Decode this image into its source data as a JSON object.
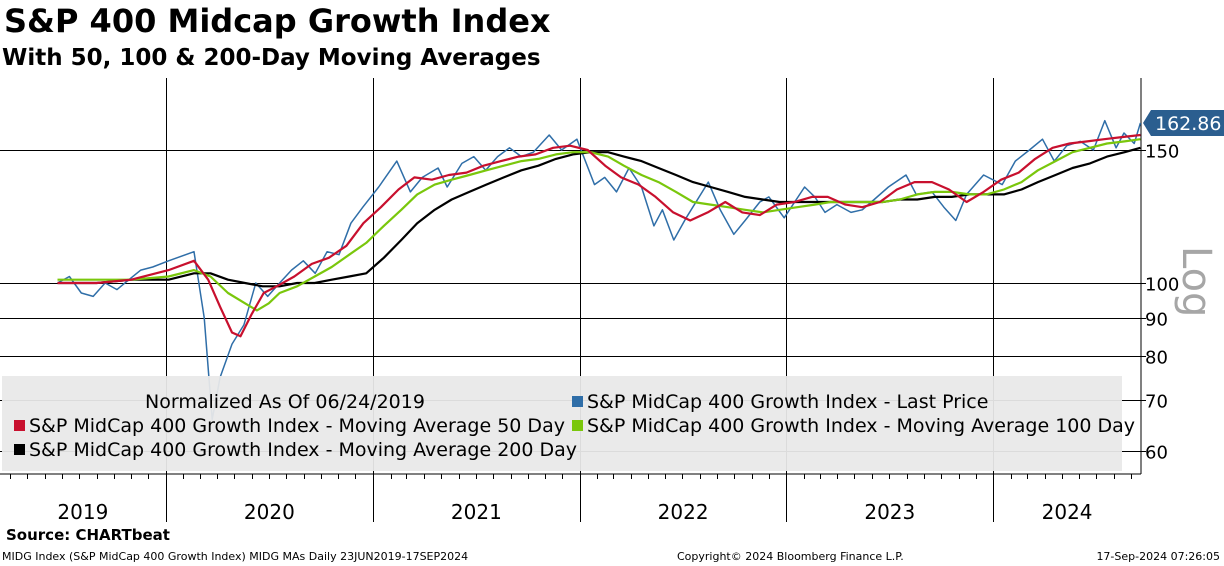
{
  "header": {
    "title": "S&P 400 Midcap Growth Index",
    "subtitle": "With 50, 100 & 200-Day Moving Averages"
  },
  "footer": {
    "source": "Source: CHARTbeat",
    "description": "MIDG Index (S&P MidCap 400 Growth Index) MIDG MAs  Daily 23JUN2019-17SEP2024",
    "copyright": "Copyright© 2024 Bloomberg Finance L.P.",
    "timestamp": "17-Sep-2024 07:26:05"
  },
  "chart_data": {
    "type": "line",
    "scale": "log",
    "scale_label": "Log",
    "ylim": [
      55,
      175
    ],
    "yticks": [
      60,
      70,
      80,
      90,
      100,
      150
    ],
    "xlim": [
      "2019-01-01",
      "2024-09-17"
    ],
    "year_labels": [
      "2019",
      "2020",
      "2021",
      "2022",
      "2023",
      "2024"
    ],
    "year_boundaries": [
      "2020-01-01",
      "2021-01-01",
      "2022-01-01",
      "2023-01-01",
      "2024-01-01"
    ],
    "last_value": 162.86,
    "last_value_label": "162.86",
    "legend_note": "Normalized As Of 06/24/2019",
    "legend_position": "bottom",
    "grid": true,
    "series": [
      {
        "name": "S&P MidCap 400 Growth Index - Last Price",
        "color": "#2f6ea8",
        "points": [
          [
            "2019-06-24",
            100
          ],
          [
            "2019-07-15",
            102
          ],
          [
            "2019-08-05",
            97
          ],
          [
            "2019-08-26",
            96
          ],
          [
            "2019-09-16",
            100
          ],
          [
            "2019-10-07",
            98
          ],
          [
            "2019-10-28",
            101
          ],
          [
            "2019-11-18",
            104
          ],
          [
            "2019-12-09",
            105
          ],
          [
            "2020-01-06",
            107
          ],
          [
            "2020-02-20",
            110
          ],
          [
            "2020-03-09",
            90
          ],
          [
            "2020-03-23",
            66
          ],
          [
            "2020-04-06",
            75
          ],
          [
            "2020-04-27",
            83
          ],
          [
            "2020-05-18",
            88
          ],
          [
            "2020-06-08",
            100
          ],
          [
            "2020-06-29",
            96
          ],
          [
            "2020-07-20",
            100
          ],
          [
            "2020-08-10",
            104
          ],
          [
            "2020-08-31",
            107
          ],
          [
            "2020-09-21",
            103
          ],
          [
            "2020-10-12",
            110
          ],
          [
            "2020-11-02",
            109
          ],
          [
            "2020-11-23",
            120
          ],
          [
            "2020-12-14",
            126
          ],
          [
            "2021-01-11",
            134
          ],
          [
            "2021-02-12",
            145
          ],
          [
            "2021-03-08",
            132
          ],
          [
            "2021-03-29",
            138
          ],
          [
            "2021-04-26",
            142
          ],
          [
            "2021-05-12",
            134
          ],
          [
            "2021-06-07",
            144
          ],
          [
            "2021-06-28",
            147
          ],
          [
            "2021-07-19",
            141
          ],
          [
            "2021-08-09",
            147
          ],
          [
            "2021-08-30",
            151
          ],
          [
            "2021-09-20",
            147
          ],
          [
            "2021-10-11",
            149
          ],
          [
            "2021-11-08",
            157
          ],
          [
            "2021-11-30",
            150
          ],
          [
            "2021-12-27",
            155
          ],
          [
            "2022-01-27",
            135
          ],
          [
            "2022-02-14",
            138
          ],
          [
            "2022-03-07",
            132
          ],
          [
            "2022-03-29",
            142
          ],
          [
            "2022-04-20",
            134
          ],
          [
            "2022-05-12",
            119
          ],
          [
            "2022-05-27",
            125
          ],
          [
            "2022-06-16",
            114
          ],
          [
            "2022-07-08",
            122
          ],
          [
            "2022-08-16",
            136
          ],
          [
            "2022-09-06",
            125
          ],
          [
            "2022-09-30",
            116
          ],
          [
            "2022-10-20",
            121
          ],
          [
            "2022-11-15",
            128
          ],
          [
            "2022-12-01",
            130
          ],
          [
            "2022-12-28",
            122
          ],
          [
            "2023-02-02",
            134
          ],
          [
            "2023-02-20",
            130
          ],
          [
            "2023-03-10",
            124
          ],
          [
            "2023-03-31",
            127
          ],
          [
            "2023-04-25",
            124
          ],
          [
            "2023-05-15",
            125
          ],
          [
            "2023-06-05",
            129
          ],
          [
            "2023-06-30",
            134
          ],
          [
            "2023-07-31",
            139
          ],
          [
            "2023-08-18",
            131
          ],
          [
            "2023-09-15",
            132
          ],
          [
            "2023-10-06",
            126
          ],
          [
            "2023-10-27",
            121
          ],
          [
            "2023-11-15",
            131
          ],
          [
            "2023-12-15",
            139
          ],
          [
            "2024-01-17",
            135
          ],
          [
            "2024-02-09",
            145
          ],
          [
            "2024-03-05",
            150
          ],
          [
            "2024-03-28",
            155
          ],
          [
            "2024-04-18",
            145
          ],
          [
            "2024-05-10",
            152
          ],
          [
            "2024-06-03",
            154
          ],
          [
            "2024-06-26",
            150
          ],
          [
            "2024-07-16",
            164
          ],
          [
            "2024-08-05",
            151
          ],
          [
            "2024-08-19",
            158
          ],
          [
            "2024-09-06",
            153
          ],
          [
            "2024-09-17",
            162.86
          ]
        ]
      },
      {
        "name": "S&P MidCap 400 Growth Index - Moving Average 50 Day",
        "color": "#c8102e",
        "points": [
          [
            "2019-06-24",
            100
          ],
          [
            "2019-09-01",
            100
          ],
          [
            "2019-11-01",
            101
          ],
          [
            "2020-01-06",
            104
          ],
          [
            "2020-02-20",
            107
          ],
          [
            "2020-03-16",
            101
          ],
          [
            "2020-04-06",
            93
          ],
          [
            "2020-04-27",
            86
          ],
          [
            "2020-05-12",
            85
          ],
          [
            "2020-06-01",
            91
          ],
          [
            "2020-06-22",
            97
          ],
          [
            "2020-07-15",
            99
          ],
          [
            "2020-08-15",
            102
          ],
          [
            "2020-09-15",
            106
          ],
          [
            "2020-10-15",
            108
          ],
          [
            "2020-11-15",
            112
          ],
          [
            "2020-12-15",
            120
          ],
          [
            "2021-01-15",
            126
          ],
          [
            "2021-02-15",
            133
          ],
          [
            "2021-03-15",
            138
          ],
          [
            "2021-04-15",
            137
          ],
          [
            "2021-05-15",
            139
          ],
          [
            "2021-06-15",
            140
          ],
          [
            "2021-07-15",
            143
          ],
          [
            "2021-08-15",
            145
          ],
          [
            "2021-09-15",
            147
          ],
          [
            "2021-10-15",
            148
          ],
          [
            "2021-11-15",
            151
          ],
          [
            "2021-12-15",
            152
          ],
          [
            "2022-01-15",
            150
          ],
          [
            "2022-02-15",
            143
          ],
          [
            "2022-03-15",
            138
          ],
          [
            "2022-04-15",
            135
          ],
          [
            "2022-05-15",
            130
          ],
          [
            "2022-06-15",
            124
          ],
          [
            "2022-07-15",
            121
          ],
          [
            "2022-08-15",
            124
          ],
          [
            "2022-09-15",
            128
          ],
          [
            "2022-10-15",
            124
          ],
          [
            "2022-11-15",
            123
          ],
          [
            "2022-12-15",
            127
          ],
          [
            "2023-01-15",
            128
          ],
          [
            "2023-02-15",
            130
          ],
          [
            "2023-03-15",
            130
          ],
          [
            "2023-04-15",
            127
          ],
          [
            "2023-05-15",
            126
          ],
          [
            "2023-06-15",
            128
          ],
          [
            "2023-07-15",
            133
          ],
          [
            "2023-08-15",
            136
          ],
          [
            "2023-09-15",
            136
          ],
          [
            "2023-10-15",
            133
          ],
          [
            "2023-11-15",
            128
          ],
          [
            "2023-12-15",
            132
          ],
          [
            "2024-01-15",
            137
          ],
          [
            "2024-02-15",
            140
          ],
          [
            "2024-03-15",
            146
          ],
          [
            "2024-04-15",
            151
          ],
          [
            "2024-05-15",
            153
          ],
          [
            "2024-06-15",
            154
          ],
          [
            "2024-07-15",
            155
          ],
          [
            "2024-08-15",
            156
          ],
          [
            "2024-09-17",
            157
          ]
        ]
      },
      {
        "name": "S&P MidCap 400 Growth Index - Moving Average 100 Day",
        "color": "#7ac70c",
        "points": [
          [
            "2019-06-24",
            101
          ],
          [
            "2019-09-01",
            101
          ],
          [
            "2019-11-01",
            101
          ],
          [
            "2020-01-06",
            102
          ],
          [
            "2020-02-20",
            104
          ],
          [
            "2020-03-20",
            102
          ],
          [
            "2020-04-20",
            97
          ],
          [
            "2020-05-20",
            94
          ],
          [
            "2020-06-10",
            92
          ],
          [
            "2020-07-01",
            94
          ],
          [
            "2020-07-20",
            97
          ],
          [
            "2020-08-20",
            99
          ],
          [
            "2020-09-20",
            102
          ],
          [
            "2020-10-20",
            105
          ],
          [
            "2020-11-20",
            109
          ],
          [
            "2020-12-20",
            113
          ],
          [
            "2021-01-20",
            119
          ],
          [
            "2021-02-20",
            125
          ],
          [
            "2021-03-20",
            131
          ],
          [
            "2021-04-20",
            135
          ],
          [
            "2021-05-20",
            137
          ],
          [
            "2021-06-20",
            139
          ],
          [
            "2021-07-20",
            141
          ],
          [
            "2021-08-20",
            143
          ],
          [
            "2021-09-20",
            145
          ],
          [
            "2021-10-20",
            146
          ],
          [
            "2021-11-20",
            148
          ],
          [
            "2021-12-20",
            149
          ],
          [
            "2022-01-20",
            149
          ],
          [
            "2022-02-20",
            147
          ],
          [
            "2022-03-20",
            143
          ],
          [
            "2022-04-20",
            139
          ],
          [
            "2022-05-20",
            136
          ],
          [
            "2022-06-20",
            132
          ],
          [
            "2022-07-20",
            128
          ],
          [
            "2022-08-20",
            127
          ],
          [
            "2022-09-20",
            126
          ],
          [
            "2022-10-20",
            125
          ],
          [
            "2022-11-20",
            124
          ],
          [
            "2022-12-20",
            125
          ],
          [
            "2023-01-20",
            126
          ],
          [
            "2023-02-20",
            127
          ],
          [
            "2023-03-20",
            128
          ],
          [
            "2023-04-20",
            128
          ],
          [
            "2023-05-20",
            128
          ],
          [
            "2023-06-20",
            128
          ],
          [
            "2023-07-20",
            129
          ],
          [
            "2023-08-20",
            131
          ],
          [
            "2023-09-20",
            132
          ],
          [
            "2023-10-20",
            132
          ],
          [
            "2023-11-20",
            131
          ],
          [
            "2023-12-20",
            131
          ],
          [
            "2024-01-20",
            133
          ],
          [
            "2024-02-20",
            136
          ],
          [
            "2024-03-20",
            141
          ],
          [
            "2024-04-20",
            145
          ],
          [
            "2024-05-20",
            149
          ],
          [
            "2024-06-20",
            151
          ],
          [
            "2024-07-20",
            153
          ],
          [
            "2024-08-20",
            154
          ],
          [
            "2024-09-17",
            155
          ]
        ]
      },
      {
        "name": "S&P MidCap 400 Growth Index - Moving Average 200 Day",
        "color": "#000000",
        "points": [
          [
            "2019-06-24",
            100
          ],
          [
            "2019-09-01",
            100
          ],
          [
            "2019-11-01",
            101
          ],
          [
            "2020-01-06",
            101
          ],
          [
            "2020-02-20",
            103
          ],
          [
            "2020-03-20",
            103
          ],
          [
            "2020-04-20",
            101
          ],
          [
            "2020-05-20",
            100
          ],
          [
            "2020-06-20",
            99
          ],
          [
            "2020-07-20",
            99
          ],
          [
            "2020-08-20",
            100
          ],
          [
            "2020-09-20",
            100
          ],
          [
            "2020-10-20",
            101
          ],
          [
            "2020-11-20",
            102
          ],
          [
            "2020-12-20",
            103
          ],
          [
            "2021-01-20",
            108
          ],
          [
            "2021-02-20",
            114
          ],
          [
            "2021-03-20",
            120
          ],
          [
            "2021-04-20",
            125
          ],
          [
            "2021-05-20",
            129
          ],
          [
            "2021-06-20",
            132
          ],
          [
            "2021-07-20",
            135
          ],
          [
            "2021-08-20",
            138
          ],
          [
            "2021-09-20",
            141
          ],
          [
            "2021-10-20",
            143
          ],
          [
            "2021-11-20",
            146
          ],
          [
            "2021-12-20",
            148
          ],
          [
            "2022-01-20",
            149
          ],
          [
            "2022-02-20",
            149
          ],
          [
            "2022-03-20",
            147
          ],
          [
            "2022-04-20",
            145
          ],
          [
            "2022-05-20",
            142
          ],
          [
            "2022-06-20",
            139
          ],
          [
            "2022-07-20",
            136
          ],
          [
            "2022-08-20",
            134
          ],
          [
            "2022-09-20",
            132
          ],
          [
            "2022-10-20",
            130
          ],
          [
            "2022-11-20",
            129
          ],
          [
            "2022-12-20",
            128
          ],
          [
            "2023-01-20",
            128
          ],
          [
            "2023-02-20",
            128
          ],
          [
            "2023-03-20",
            128
          ],
          [
            "2023-04-20",
            128
          ],
          [
            "2023-05-20",
            128
          ],
          [
            "2023-06-20",
            128
          ],
          [
            "2023-07-20",
            129
          ],
          [
            "2023-08-20",
            129
          ],
          [
            "2023-09-20",
            130
          ],
          [
            "2023-10-20",
            130
          ],
          [
            "2023-11-20",
            131
          ],
          [
            "2023-12-20",
            131
          ],
          [
            "2024-01-20",
            131
          ],
          [
            "2024-02-20",
            133
          ],
          [
            "2024-03-20",
            136
          ],
          [
            "2024-04-20",
            139
          ],
          [
            "2024-05-20",
            142
          ],
          [
            "2024-06-20",
            144
          ],
          [
            "2024-07-20",
            147
          ],
          [
            "2024-08-20",
            149
          ],
          [
            "2024-09-17",
            151
          ]
        ]
      }
    ]
  }
}
